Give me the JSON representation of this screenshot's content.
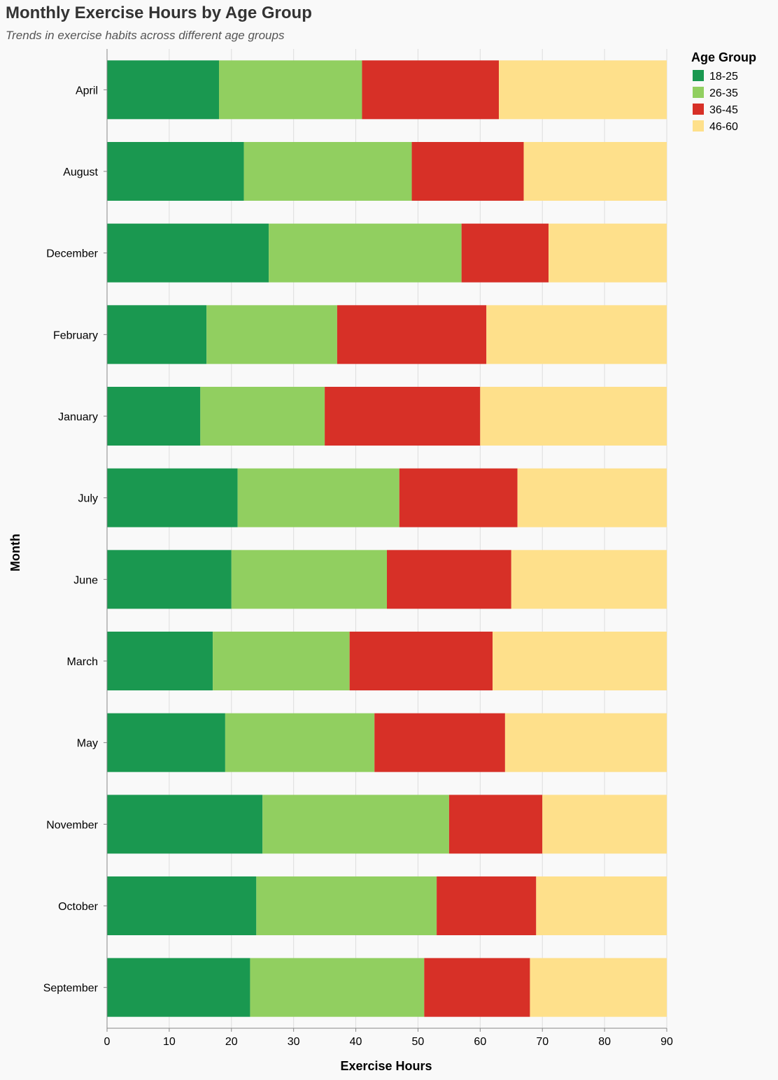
{
  "chart_data": {
    "type": "bar",
    "orientation": "horizontal",
    "stacked": true,
    "title": "Monthly Exercise Hours by Age Group",
    "subtitle": "Trends in exercise habits across different age groups",
    "xlabel": "Exercise Hours",
    "ylabel": "Month",
    "xlim": [
      0,
      90
    ],
    "x_ticks": [
      0,
      10,
      20,
      30,
      40,
      50,
      60,
      70,
      80,
      90
    ],
    "grid": true,
    "legend_title": "Age Group",
    "legend_position": "top-right",
    "categories": [
      "April",
      "August",
      "December",
      "February",
      "January",
      "July",
      "June",
      "March",
      "May",
      "November",
      "October",
      "September"
    ],
    "series": [
      {
        "name": "18-25",
        "color": "#1a9850",
        "values": [
          18,
          22,
          26,
          16,
          15,
          21,
          20,
          17,
          19,
          25,
          24,
          23
        ]
      },
      {
        "name": "26-35",
        "color": "#91cf60",
        "values": [
          23,
          27,
          31,
          21,
          20,
          26,
          25,
          22,
          24,
          30,
          29,
          28
        ]
      },
      {
        "name": "36-45",
        "color": "#d73027",
        "values": [
          22,
          18,
          14,
          24,
          25,
          19,
          20,
          23,
          21,
          15,
          16,
          17
        ]
      },
      {
        "name": "46-60",
        "color": "#fee08b",
        "values": [
          27,
          23,
          19,
          29,
          30,
          24,
          25,
          28,
          26,
          20,
          21,
          22
        ]
      }
    ]
  }
}
